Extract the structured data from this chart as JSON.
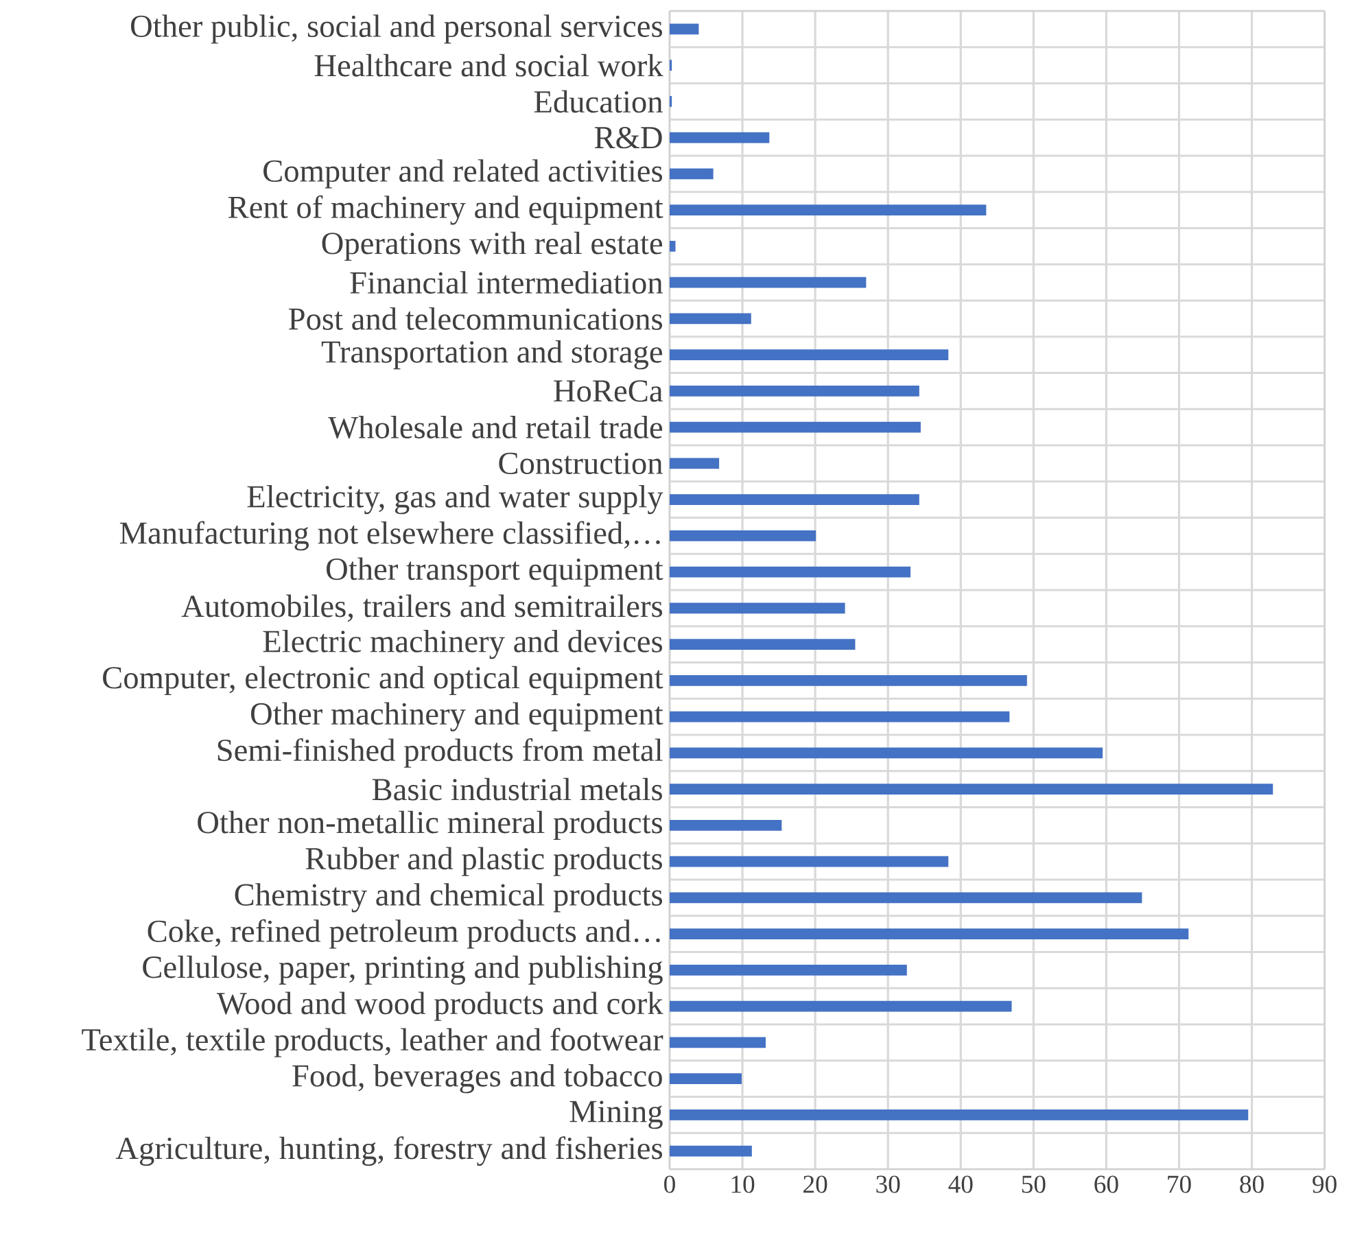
{
  "chart_data": {
    "type": "bar",
    "orientation": "horizontal",
    "categories": [
      "Other public, social and personal services",
      "Healthcare and social work",
      "Education",
      "R&D",
      "Computer and related activities",
      "Rent of machinery and equipment",
      "Operations with real estate",
      "Financial intermediation",
      "Post and telecommunications",
      "Transportation and storage",
      "HoReCa",
      "Wholesale and retail trade",
      "Construction",
      "Electricity, gas and water supply",
      "Manufacturing not elsewhere classified,…",
      "Other transport equipment",
      "Automobiles, trailers and semitrailers",
      "Electric machinery and devices",
      "Computer, electronic and optical equipment",
      "Other machinery and equipment",
      "Semi-finished products from metal",
      "Basic industrial metals",
      "Other non-metallic mineral products",
      "Rubber and plastic products",
      "Chemistry and chemical products",
      "Coke, refined petroleum products and…",
      "Cellulose, paper, printing and publishing",
      "Wood and wood products and cork",
      "Textile, textile products, leather and footwear",
      "Food, beverages and tobacco",
      "Mining",
      "Agriculture, hunting, forestry and fisheries"
    ],
    "values": [
      4.0,
      0.3,
      0.3,
      13.7,
      6.0,
      43.5,
      0.8,
      27.0,
      11.2,
      38.3,
      34.3,
      34.5,
      6.8,
      34.3,
      20.1,
      33.1,
      24.1,
      25.5,
      49.1,
      46.7,
      59.5,
      82.9,
      15.4,
      38.3,
      64.9,
      71.3,
      32.6,
      47.0,
      13.2,
      9.9,
      79.5,
      11.3
    ],
    "color": "#4472c4",
    "xlim": [
      0,
      90
    ],
    "xticks": [
      0,
      10,
      20,
      30,
      40,
      50,
      60,
      70,
      80,
      90
    ],
    "grid": true
  }
}
